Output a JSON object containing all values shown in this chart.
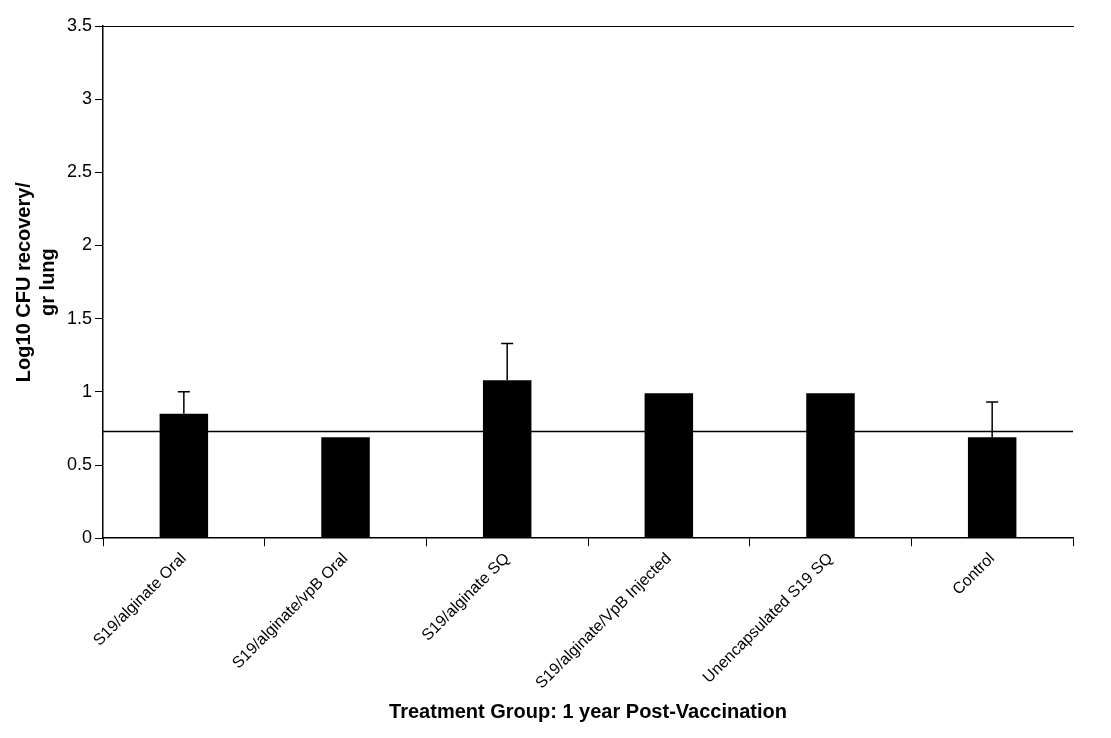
{
  "chart_data": {
    "type": "bar",
    "xlabel": "Treatment Group: 1 year Post-Vaccination",
    "ylabel": "Log10 CFU recovery/\ngr lung",
    "categories": [
      "S19/alginate Oral",
      "S19/alginate/vpB Oral",
      "S19/alginate SQ",
      "S19/alginate/VpB Injected",
      "Unencapsulated S19 SQ",
      "Control"
    ],
    "values": [
      0.85,
      0.69,
      1.08,
      0.99,
      0.99,
      0.69
    ],
    "errors": [
      [
        0.85,
        1.0
      ],
      null,
      [
        1.08,
        1.33
      ],
      null,
      null,
      [
        0.69,
        0.93
      ]
    ],
    "color": "#000000",
    "ylim": [
      0,
      3.5
    ],
    "yticks": [
      0,
      0.5,
      1,
      1.5,
      2,
      2.5,
      3,
      3.5
    ],
    "grid": false,
    "legend": false,
    "ref_lines": [
      {
        "axis": "y",
        "value": 0.73,
        "color": "#000000"
      }
    ]
  }
}
